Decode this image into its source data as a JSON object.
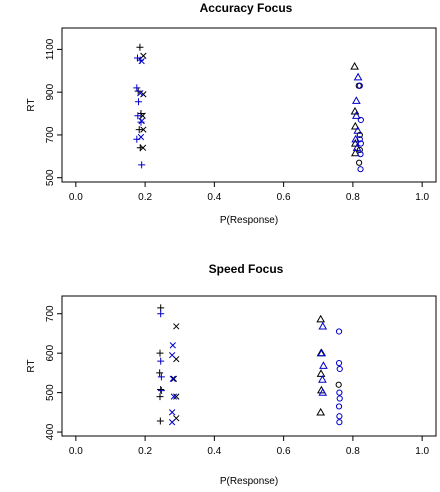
{
  "colors": {
    "black_series": "#000000",
    "blue_series": "#0000cc"
  },
  "chart_data": [
    {
      "type": "scatter",
      "title": "Accuracy Focus",
      "xlabel": "P(Response)",
      "ylabel": "RT",
      "xlim": [
        -0.04,
        1.04
      ],
      "ylim": [
        480,
        1200
      ],
      "xticks": [
        0.0,
        0.2,
        0.4,
        0.6,
        0.8,
        1.0
      ],
      "xtick_labels": [
        "0.0",
        "0.2",
        "0.4",
        "0.6",
        "0.8",
        "1.0"
      ],
      "yticks": [
        500,
        700,
        900,
        1100
      ],
      "ytick_labels": [
        "500",
        "700",
        "900",
        "1100"
      ],
      "grid": false,
      "series": [
        {
          "symbol": "plus",
          "color": "black",
          "x": [
            0.185,
            0.18,
            0.188,
            0.183,
            0.186
          ],
          "y": [
            1110,
            905,
            800,
            725,
            640
          ]
        },
        {
          "symbol": "plus",
          "color": "blue",
          "x": [
            0.178,
            0.186,
            0.176,
            0.181,
            0.179,
            0.188,
            0.176,
            0.19
          ],
          "y": [
            1060,
            1050,
            920,
            855,
            790,
            760,
            680,
            560
          ]
        },
        {
          "symbol": "cross",
          "color": "black",
          "x": [
            0.195,
            0.195,
            0.193,
            0.195,
            0.194
          ],
          "y": [
            1070,
            890,
            790,
            725,
            640
          ]
        },
        {
          "symbol": "cross",
          "color": "blue",
          "x": [
            0.19,
            0.186,
            0.19,
            0.188
          ],
          "y": [
            1045,
            895,
            765,
            690
          ]
        },
        {
          "symbol": "triangle",
          "color": "black",
          "x": [
            0.805,
            0.806,
            0.807,
            0.807,
            0.807
          ],
          "y": [
            1020,
            810,
            740,
            660,
            615
          ]
        },
        {
          "symbol": "triangle",
          "color": "blue",
          "x": [
            0.815,
            0.81,
            0.81,
            0.814,
            0.808,
            0.812
          ],
          "y": [
            970,
            860,
            790,
            720,
            680,
            640
          ]
        },
        {
          "symbol": "circle",
          "color": "black",
          "x": [
            0.817,
            0.82,
            0.82,
            0.818
          ],
          "y": [
            930,
            700,
            630,
            570
          ]
        },
        {
          "symbol": "circle",
          "color": "blue",
          "x": [
            0.82,
            0.823,
            0.82,
            0.823,
            0.822,
            0.822
          ],
          "y": [
            930,
            770,
            680,
            660,
            610,
            540
          ]
        }
      ]
    },
    {
      "type": "scatter",
      "title": "Speed Focus",
      "xlabel": "P(Response)",
      "ylabel": "RT",
      "xlim": [
        -0.04,
        1.04
      ],
      "ylim": [
        390,
        745
      ],
      "xticks": [
        0.0,
        0.2,
        0.4,
        0.6,
        0.8,
        1.0
      ],
      "xtick_labels": [
        "0.0",
        "0.2",
        "0.4",
        "0.6",
        "0.8",
        "1.0"
      ],
      "yticks": [
        400,
        500,
        600,
        700
      ],
      "ytick_labels": [
        "400",
        "500",
        "600",
        "700"
      ],
      "grid": false,
      "series": [
        {
          "symbol": "plus",
          "color": "black",
          "x": [
            0.245,
            0.243,
            0.242,
            0.245,
            0.243,
            0.244
          ],
          "y": [
            715,
            600,
            550,
            508,
            490,
            428
          ]
        },
        {
          "symbol": "plus",
          "color": "blue",
          "x": [
            0.245,
            0.245,
            0.247,
            0.247
          ],
          "y": [
            700,
            580,
            540,
            505
          ]
        },
        {
          "symbol": "cross",
          "color": "black",
          "x": [
            0.29,
            0.29,
            0.283,
            0.29,
            0.29
          ],
          "y": [
            668,
            585,
            535,
            490,
            435
          ]
        },
        {
          "symbol": "cross",
          "color": "blue",
          "x": [
            0.28,
            0.278,
            0.28,
            0.283,
            0.278,
            0.278
          ],
          "y": [
            620,
            595,
            535,
            490,
            450,
            425
          ]
        },
        {
          "symbol": "triangle",
          "color": "black",
          "x": [
            0.707,
            0.708,
            0.708,
            0.709,
            0.707
          ],
          "y": [
            686,
            600,
            548,
            506,
            450
          ]
        },
        {
          "symbol": "triangle",
          "color": "blue",
          "x": [
            0.713,
            0.71,
            0.715,
            0.712,
            0.713
          ],
          "y": [
            668,
            600,
            568,
            533,
            500
          ]
        },
        {
          "symbol": "circle",
          "color": "black",
          "x": [
            0.759
          ],
          "y": [
            520
          ]
        },
        {
          "symbol": "circle",
          "color": "blue",
          "x": [
            0.76,
            0.76,
            0.762,
            0.761,
            0.762,
            0.76,
            0.761,
            0.761
          ],
          "y": [
            655,
            575,
            560,
            500,
            485,
            465,
            440,
            425
          ]
        }
      ]
    }
  ]
}
